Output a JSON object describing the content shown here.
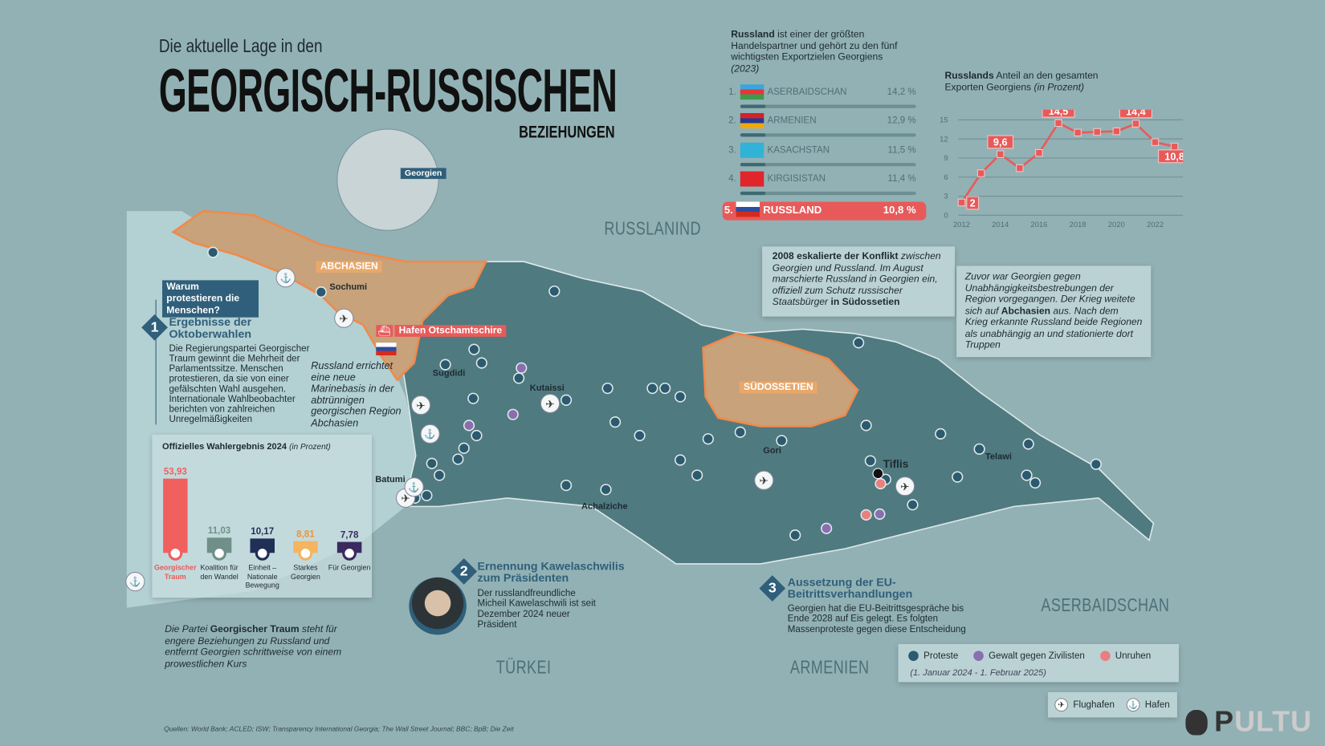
{
  "header": {
    "subtitle": "Die aktuelle Lage in den",
    "title": "GEORGISCH-RUSSISCHEN",
    "title2": "BEZIEHUNGEN"
  },
  "globe": {
    "label": "Georgien"
  },
  "countries": {
    "russia": "RUSSLANIND",
    "turkey": "TÜRKEI",
    "armenia": "ARMENIEN",
    "azerbaijan": "ASERBAIDSCHAN"
  },
  "regions": {
    "abkhazia": "ABCHASIEN",
    "south_ossetia": "SÜDOSSETIEN"
  },
  "cities": [
    "Sochumi",
    "Sugdidi",
    "Kutaissi",
    "Batumi",
    "Achalziche",
    "Gori",
    "Tiflis",
    "Telawi"
  ],
  "port": {
    "label": "Hafen Otschamtschire",
    "note": "Russland errichtet eine neue Marinebasis in der abtrünnigen georgischen Region Abchasien"
  },
  "trade": {
    "intro_bold": "Russland",
    "intro": " ist einer der größten Handelspartner und gehört zu den fünf wichtigsten Exportzielen Georgiens ",
    "intro_year": "(2023)",
    "rows": [
      {
        "rank": "1.",
        "name": "ASERBAIDSCHAN",
        "value": "14,2 %",
        "flag": "az"
      },
      {
        "rank": "2.",
        "name": "ARMENIEN",
        "value": "12,9 %",
        "flag": "am"
      },
      {
        "rank": "3.",
        "name": "KASACHSTAN",
        "value": "11,5 %",
        "flag": "kz"
      },
      {
        "rank": "4.",
        "name": "KIRGISISTAN",
        "value": "11,4 %",
        "flag": "kg"
      },
      {
        "rank": "5.",
        "name": "RUSSLAND",
        "value": "10,8 %",
        "flag": "ru"
      }
    ]
  },
  "chart_data": [
    {
      "type": "line",
      "title_bold": "Russlands",
      "title": " Anteil an den gesamten Exporten Georgiens ",
      "title_unit": "(in Prozent)",
      "x": [
        2012,
        2013,
        2014,
        2015,
        2016,
        2017,
        2018,
        2019,
        2020,
        2021,
        2022,
        2023
      ],
      "values": [
        2,
        6.6,
        9.6,
        7.4,
        9.8,
        14.5,
        13,
        13.1,
        13.2,
        14.4,
        11.5,
        10.8
      ],
      "labels": {
        "2012": "2",
        "2014": "9,6",
        "2017": "14,5",
        "2021": "14,4",
        "2023": "10,8"
      },
      "yticks": [
        0,
        3,
        6,
        9,
        12,
        15
      ],
      "xticks": [
        2012,
        2014,
        2016,
        2018,
        2020,
        2022
      ],
      "ylim": [
        0,
        15
      ],
      "grid": true,
      "color": "#e85a5a"
    },
    {
      "type": "bar",
      "title": "Offizielles Wahlergebnis 2024",
      "title_unit": "(in Prozent)",
      "categories": [
        "Georgischer Traum",
        "Koalition für den Wandel",
        "Einheit – Nationale Bewegung",
        "Starkes Georgien",
        "Für Georgien"
      ],
      "values": [
        53.93,
        11.03,
        10.17,
        8.81,
        7.78
      ],
      "value_labels": [
        "53,93",
        "11,03",
        "10,17",
        "8,81",
        "7,78"
      ],
      "colors": [
        "#f0605e",
        "#6f8f88",
        "#1f2f55",
        "#f5b460",
        "#3a2a60"
      ],
      "ylim": [
        0,
        55
      ]
    }
  ],
  "why": {
    "label": "Warum protestieren die Menschen?"
  },
  "points": [
    {
      "num": "1",
      "title": "Ergebnisse der Oktoberwahlen",
      "text": "Die Regierungspartei Georgischer Traum gewinnt die Mehrheit der Parlamentssitze. Menschen protestieren, da sie von einer gefälschten Wahl ausgehen. Internationale Wahlbeobachter berichten von zahlreichen Unregelmäßigkeiten"
    },
    {
      "num": "2",
      "title": "Ernennung Kawelaschwilis zum Präsidenten",
      "text": "Der russlandfreundliche Micheil Kawelaschwili ist seit Dezember 2024 neuer Präsident"
    },
    {
      "num": "3",
      "title": "Aussetzung der EU-Beitrittsverhandlungen",
      "text": "Georgien hat die EU-Beitrittsgespräche bis Ende 2028 auf Eis gelegt. Es folgten Massenproteste gegen diese Entscheidung"
    }
  ],
  "party_note": {
    "pre": "Die Partei ",
    "bold": "Georgischer Traum",
    "post": " steht für engere Beziehungen zu Russland und entfernt Georgien schrittweise von einem prowestlichen Kurs"
  },
  "conflict": {
    "bold": "2008 eskalierte der Konflikt",
    "text": " zwischen Georgien und Russland. Im August marschierte Russland in Georgien ein, offiziell zum Schutz russischer Staatsbürger ",
    "bold2": "in Südossetien"
  },
  "before": {
    "pre": "Zuvor war Georgien gegen Unabhängigkeitsbestrebungen der Region vorgegangen. Der Krieg weitete sich auf ",
    "bold": "Abchasien",
    "post": " aus. Nach dem Krieg erkannte Russland beide Regionen als unabhängig an und stationierte dort Truppen"
  },
  "legend": {
    "items": [
      {
        "label": "Proteste",
        "color": "#2c5a6e"
      },
      {
        "label": "Gewalt gegen Zivilisten",
        "color": "#8a6fb0"
      },
      {
        "label": "Unruhen",
        "color": "#e88080"
      }
    ],
    "period": "(1. Januar 2024 - 1. Februar 2025)",
    "airport": "Flughafen",
    "port": "Hafen"
  },
  "sources": "Quellen: World Bank; ACLED; ISW; Transparency International Georgia; The Wall Street Journal; BBC; BpB; Die Zeit",
  "logo": "PULTU",
  "colors": {
    "accent": "#e85a5a",
    "region": "#c8a27a",
    "region_border": "#f08a4b",
    "georgia": "#4f7a80",
    "sea": "#b3d0d3",
    "land": "#92b1b4"
  }
}
